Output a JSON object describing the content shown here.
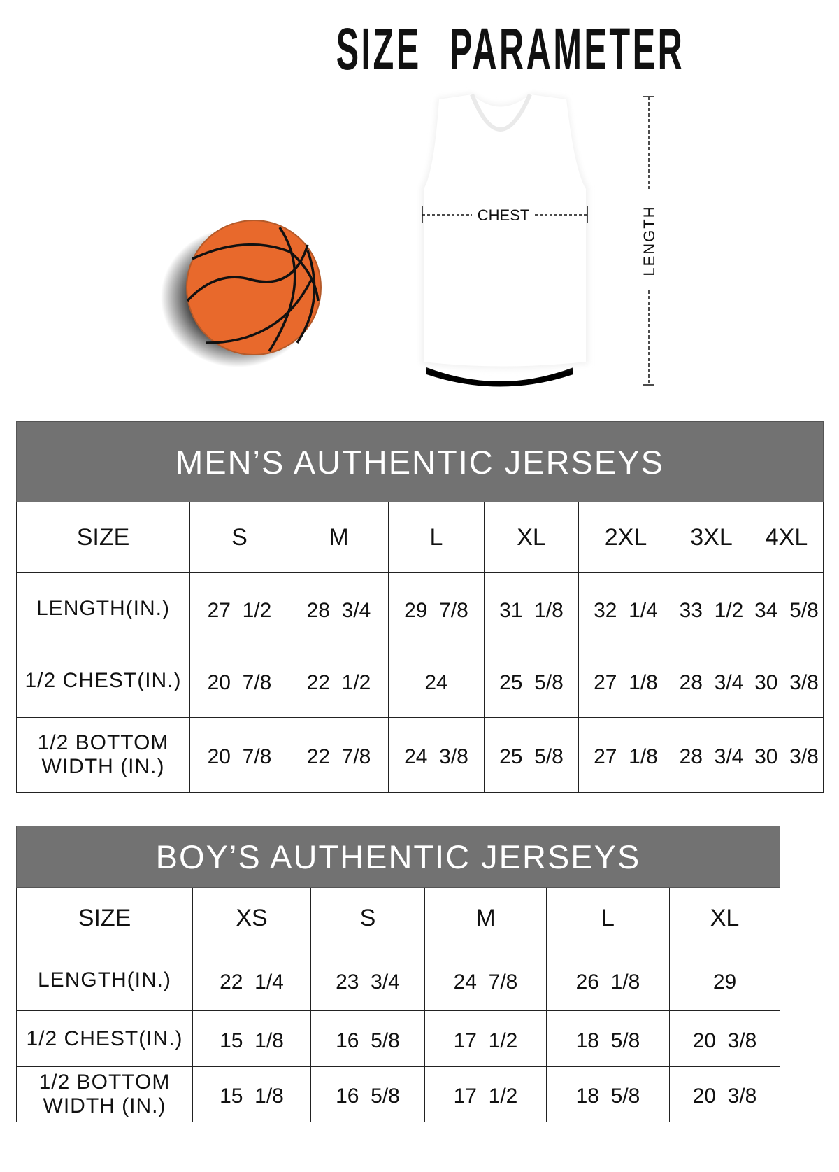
{
  "title": "SIZE PARAMETER",
  "diagram": {
    "chest_label": "CHEST",
    "length_label": "LENGTH"
  },
  "colors": {
    "header_bg": "#727272",
    "ball": "#E8692C"
  },
  "men": {
    "title": "MEN’S AUTHENTIC JERSEYS",
    "size_label": "SIZE",
    "sizes": [
      "S",
      "M",
      "L",
      "XL",
      "2XL",
      "3XL",
      "4XL"
    ],
    "rows": [
      {
        "label": "LENGTH(IN.)",
        "values": [
          "27  1/2",
          "28  3/4",
          "29  7/8",
          "31  1/8",
          "32  1/4",
          "33  1/2",
          "34  5/8"
        ]
      },
      {
        "label": "1/2 CHEST(IN.)",
        "values": [
          "20  7/8",
          "22  1/2",
          "24",
          "25  5/8",
          "27  1/8",
          "28  3/4",
          "30  3/8"
        ]
      },
      {
        "label": "1/2 BOTTOM\nWIDTH  (IN.)",
        "values": [
          "20  7/8",
          "22  7/8",
          "24  3/8",
          "25  5/8",
          "27  1/8",
          "28  3/4",
          "30  3/8"
        ]
      }
    ]
  },
  "boy": {
    "title": "BOY’S AUTHENTIC JERSEYS",
    "size_label": "SIZE",
    "sizes": [
      "XS",
      "S",
      "M",
      "L",
      "XL"
    ],
    "rows": [
      {
        "label": "LENGTH(IN.)",
        "values": [
          "22  1/4",
          "23  3/4",
          "24  7/8",
          "26  1/8",
          "29"
        ]
      },
      {
        "label": "1/2 CHEST(IN.)",
        "values": [
          "15  1/8",
          "16  5/8",
          "17  1/2",
          "18  5/8",
          "20  3/8"
        ]
      },
      {
        "label": "1/2 BOTTOM\nWIDTH  (IN.)",
        "values": [
          "15  1/8",
          "16  5/8",
          "17  1/2",
          "18  5/8",
          "20  3/8"
        ]
      }
    ]
  }
}
